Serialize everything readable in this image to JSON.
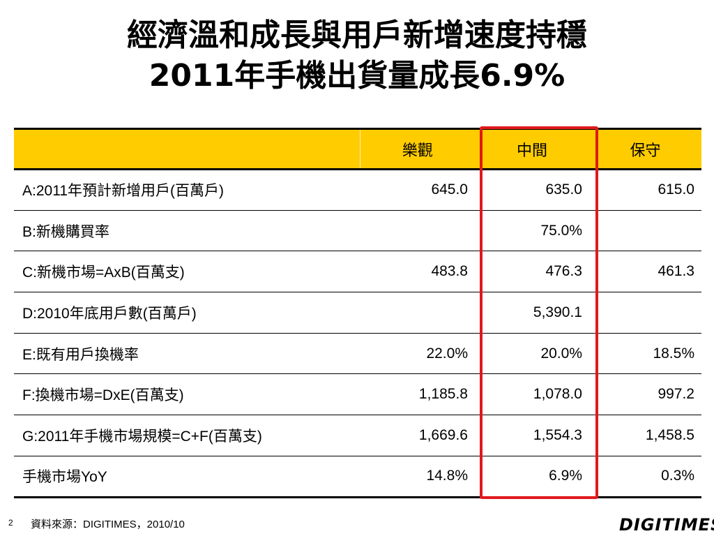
{
  "slide": {
    "title_line1": "經濟溫和成長與用戶新增速度持穩",
    "title_line2": "2011年手機出貨量成長6.9%",
    "page_number": "2",
    "source": "資料來源：DIGITIMES，2010/10",
    "logo_text": "DIGITIMES"
  },
  "table": {
    "headers": [
      "",
      "樂觀",
      "中間",
      "保守"
    ],
    "rows": [
      {
        "label": "A:2011年預計新增用戶(百萬戶)",
        "optimistic": "645.0",
        "middle": "635.0",
        "conservative": "615.0"
      },
      {
        "label": "B:新機購買率",
        "optimistic": "",
        "middle": "75.0%",
        "conservative": ""
      },
      {
        "label": "C:新機市場=AxB(百萬支)",
        "optimistic": "483.8",
        "middle": "476.3",
        "conservative": "461.3"
      },
      {
        "label": "D:2010年底用戶數(百萬戶)",
        "optimistic": "",
        "middle": "5,390.1",
        "conservative": ""
      },
      {
        "label": "E:既有用戶換機率",
        "optimistic": "22.0%",
        "middle": "20.0%",
        "conservative": "18.5%"
      },
      {
        "label": "F:換機市場=DxE(百萬支)",
        "optimistic": "1,185.8",
        "middle": "1,078.0",
        "conservative": "997.2"
      },
      {
        "label": "G:2011年手機市場規模=C+F(百萬支)",
        "optimistic": "1,669.6",
        "middle": "1,554.3",
        "conservative": "1,458.5"
      },
      {
        "label": "手機市場YoY",
        "optimistic": "14.8%",
        "middle": "6.9%",
        "conservative": "0.3%"
      }
    ]
  },
  "colors": {
    "header_fill": "#ffcc00",
    "highlight_border": "#e0191b"
  }
}
